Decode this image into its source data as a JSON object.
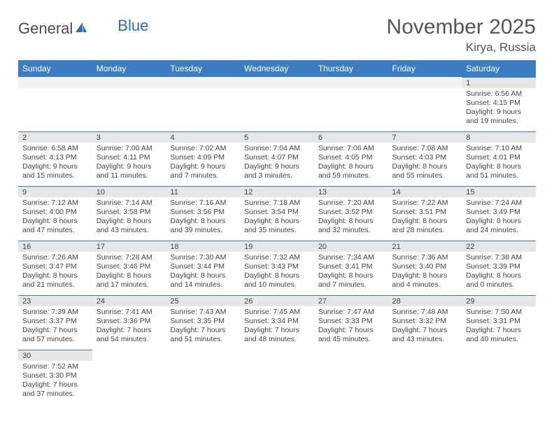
{
  "brand": {
    "general": "General",
    "blue": "Blue"
  },
  "title": "November 2025",
  "location": "Kirya, Russia",
  "dow": [
    "Sunday",
    "Monday",
    "Tuesday",
    "Wednesday",
    "Thursday",
    "Friday",
    "Saturday"
  ],
  "colors": {
    "header_bg": "#3a7ec1",
    "header_text": "#ffffff",
    "daynum_bg": "#e7e7e7",
    "rule": "#3a7ec1",
    "body_text": "#444444",
    "title_text": "#555555"
  },
  "weeks": [
    [
      null,
      null,
      null,
      null,
      null,
      null,
      {
        "n": "1",
        "sr": "Sunrise: 6:56 AM",
        "ss": "Sunset: 4:15 PM",
        "dl": "Daylight: 9 hours and 19 minutes."
      }
    ],
    [
      {
        "n": "2",
        "sr": "Sunrise: 6:58 AM",
        "ss": "Sunset: 4:13 PM",
        "dl": "Daylight: 9 hours and 15 minutes."
      },
      {
        "n": "3",
        "sr": "Sunrise: 7:00 AM",
        "ss": "Sunset: 4:11 PM",
        "dl": "Daylight: 9 hours and 11 minutes."
      },
      {
        "n": "4",
        "sr": "Sunrise: 7:02 AM",
        "ss": "Sunset: 4:09 PM",
        "dl": "Daylight: 9 hours and 7 minutes."
      },
      {
        "n": "5",
        "sr": "Sunrise: 7:04 AM",
        "ss": "Sunset: 4:07 PM",
        "dl": "Daylight: 9 hours and 3 minutes."
      },
      {
        "n": "6",
        "sr": "Sunrise: 7:06 AM",
        "ss": "Sunset: 4:05 PM",
        "dl": "Daylight: 8 hours and 59 minutes."
      },
      {
        "n": "7",
        "sr": "Sunrise: 7:08 AM",
        "ss": "Sunset: 4:03 PM",
        "dl": "Daylight: 8 hours and 55 minutes."
      },
      {
        "n": "8",
        "sr": "Sunrise: 7:10 AM",
        "ss": "Sunset: 4:01 PM",
        "dl": "Daylight: 8 hours and 51 minutes."
      }
    ],
    [
      {
        "n": "9",
        "sr": "Sunrise: 7:12 AM",
        "ss": "Sunset: 4:00 PM",
        "dl": "Daylight: 8 hours and 47 minutes."
      },
      {
        "n": "10",
        "sr": "Sunrise: 7:14 AM",
        "ss": "Sunset: 3:58 PM",
        "dl": "Daylight: 8 hours and 43 minutes."
      },
      {
        "n": "11",
        "sr": "Sunrise: 7:16 AM",
        "ss": "Sunset: 3:56 PM",
        "dl": "Daylight: 8 hours and 39 minutes."
      },
      {
        "n": "12",
        "sr": "Sunrise: 7:18 AM",
        "ss": "Sunset: 3:54 PM",
        "dl": "Daylight: 8 hours and 35 minutes."
      },
      {
        "n": "13",
        "sr": "Sunrise: 7:20 AM",
        "ss": "Sunset: 3:52 PM",
        "dl": "Daylight: 8 hours and 32 minutes."
      },
      {
        "n": "14",
        "sr": "Sunrise: 7:22 AM",
        "ss": "Sunset: 3:51 PM",
        "dl": "Daylight: 8 hours and 28 minutes."
      },
      {
        "n": "15",
        "sr": "Sunrise: 7:24 AM",
        "ss": "Sunset: 3:49 PM",
        "dl": "Daylight: 8 hours and 24 minutes."
      }
    ],
    [
      {
        "n": "16",
        "sr": "Sunrise: 7:26 AM",
        "ss": "Sunset: 3:47 PM",
        "dl": "Daylight: 8 hours and 21 minutes."
      },
      {
        "n": "17",
        "sr": "Sunrise: 7:28 AM",
        "ss": "Sunset: 3:46 PM",
        "dl": "Daylight: 8 hours and 17 minutes."
      },
      {
        "n": "18",
        "sr": "Sunrise: 7:30 AM",
        "ss": "Sunset: 3:44 PM",
        "dl": "Daylight: 8 hours and 14 minutes."
      },
      {
        "n": "19",
        "sr": "Sunrise: 7:32 AM",
        "ss": "Sunset: 3:43 PM",
        "dl": "Daylight: 8 hours and 10 minutes."
      },
      {
        "n": "20",
        "sr": "Sunrise: 7:34 AM",
        "ss": "Sunset: 3:41 PM",
        "dl": "Daylight: 8 hours and 7 minutes."
      },
      {
        "n": "21",
        "sr": "Sunrise: 7:36 AM",
        "ss": "Sunset: 3:40 PM",
        "dl": "Daylight: 8 hours and 4 minutes."
      },
      {
        "n": "22",
        "sr": "Sunrise: 7:38 AM",
        "ss": "Sunset: 3:39 PM",
        "dl": "Daylight: 8 hours and 0 minutes."
      }
    ],
    [
      {
        "n": "23",
        "sr": "Sunrise: 7:39 AM",
        "ss": "Sunset: 3:37 PM",
        "dl": "Daylight: 7 hours and 57 minutes."
      },
      {
        "n": "24",
        "sr": "Sunrise: 7:41 AM",
        "ss": "Sunset: 3:36 PM",
        "dl": "Daylight: 7 hours and 54 minutes."
      },
      {
        "n": "25",
        "sr": "Sunrise: 7:43 AM",
        "ss": "Sunset: 3:35 PM",
        "dl": "Daylight: 7 hours and 51 minutes."
      },
      {
        "n": "26",
        "sr": "Sunrise: 7:45 AM",
        "ss": "Sunset: 3:34 PM",
        "dl": "Daylight: 7 hours and 48 minutes."
      },
      {
        "n": "27",
        "sr": "Sunrise: 7:47 AM",
        "ss": "Sunset: 3:33 PM",
        "dl": "Daylight: 7 hours and 45 minutes."
      },
      {
        "n": "28",
        "sr": "Sunrise: 7:48 AM",
        "ss": "Sunset: 3:32 PM",
        "dl": "Daylight: 7 hours and 43 minutes."
      },
      {
        "n": "29",
        "sr": "Sunrise: 7:50 AM",
        "ss": "Sunset: 3:31 PM",
        "dl": "Daylight: 7 hours and 40 minutes."
      }
    ],
    [
      {
        "n": "30",
        "sr": "Sunrise: 7:52 AM",
        "ss": "Sunset: 3:30 PM",
        "dl": "Daylight: 7 hours and 37 minutes."
      },
      null,
      null,
      null,
      null,
      null,
      null
    ]
  ]
}
